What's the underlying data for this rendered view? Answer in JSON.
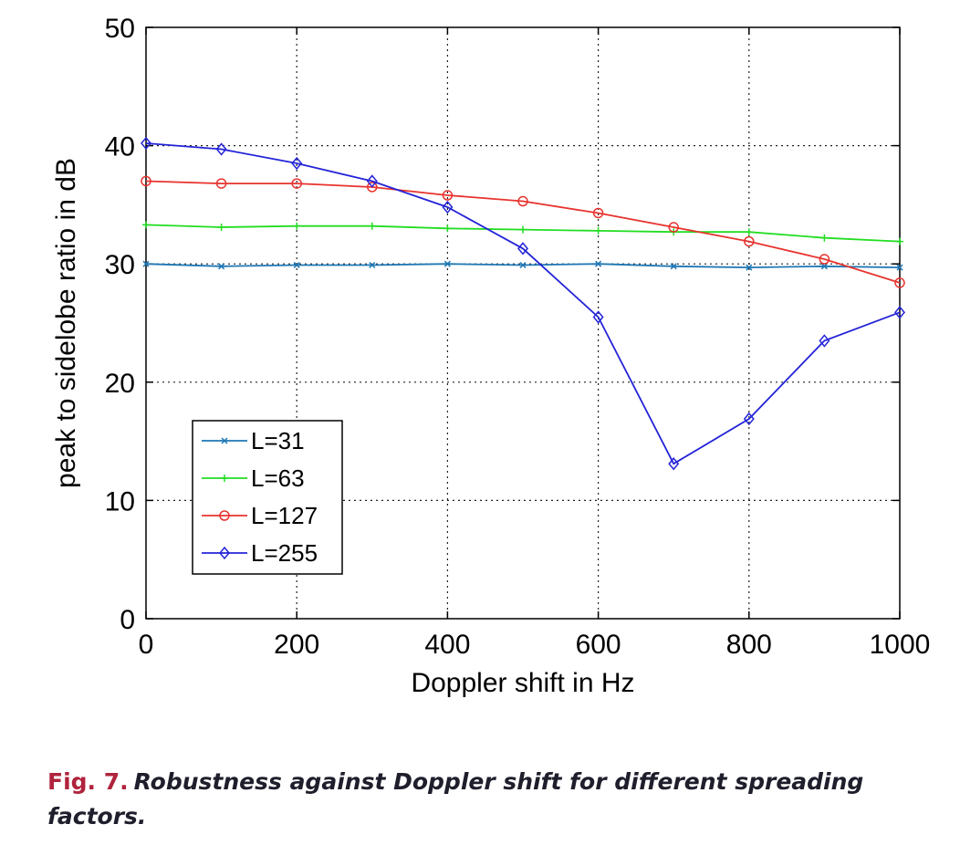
{
  "chart_data": {
    "type": "line",
    "title": "",
    "xlabel": "Doppler shift in Hz",
    "ylabel": "peak to sidelobe ratio in dB",
    "xlim": [
      0,
      1000
    ],
    "ylim": [
      0,
      50
    ],
    "xticks": [
      "0",
      "200",
      "400",
      "600",
      "800",
      "1000"
    ],
    "yticks": [
      "0",
      "10",
      "20",
      "30",
      "40",
      "50"
    ],
    "grid": true,
    "legend_position": "lower-left",
    "x": [
      0,
      100,
      200,
      300,
      400,
      500,
      600,
      700,
      800,
      900,
      1000
    ],
    "series": [
      {
        "name": "L=31",
        "color": "#1f77b4",
        "marker": "x",
        "values": [
          30.0,
          29.8,
          29.9,
          29.9,
          30.0,
          29.9,
          30.0,
          29.8,
          29.7,
          29.8,
          29.7
        ]
      },
      {
        "name": "L=63",
        "color": "#22dd22",
        "marker": "plus",
        "values": [
          33.3,
          33.1,
          33.2,
          33.2,
          33.0,
          32.9,
          32.8,
          32.7,
          32.7,
          32.2,
          31.9
        ]
      },
      {
        "name": "L=127",
        "color": "#e8332e",
        "marker": "circle",
        "values": [
          37.0,
          36.8,
          36.8,
          36.5,
          35.8,
          35.3,
          34.3,
          33.1,
          31.9,
          30.4,
          28.4
        ]
      },
      {
        "name": "L=255",
        "color": "#2424d8",
        "marker": "diamond",
        "values": [
          40.2,
          39.7,
          38.5,
          37.0,
          34.8,
          31.3,
          25.5,
          13.1,
          16.9,
          23.5,
          25.9
        ]
      }
    ]
  },
  "caption": {
    "label": "Fig. 7.",
    "text": "Robustness against Doppler shift for different spreading factors."
  }
}
